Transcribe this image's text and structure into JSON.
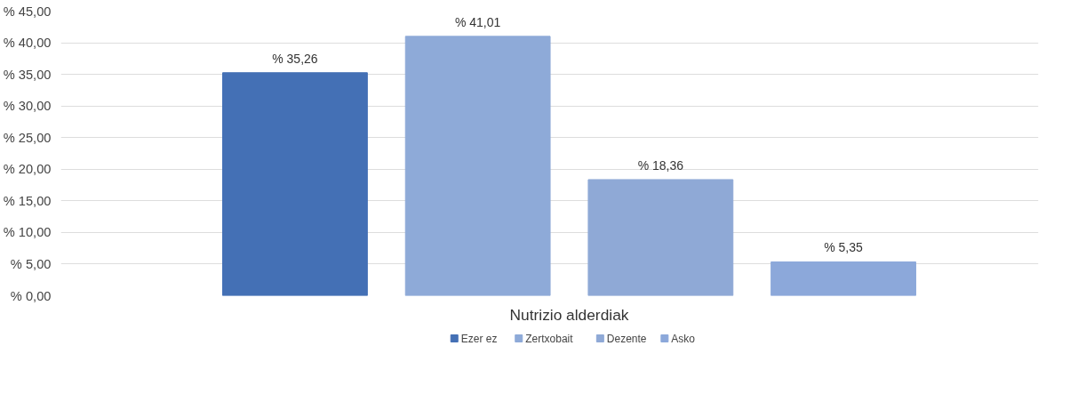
{
  "chart_data": {
    "type": "bar",
    "categories": [
      "Nutrizio alderdiak"
    ],
    "series": [
      {
        "name": "Ezer ez",
        "color": "#4470b5",
        "values": [
          35.26
        ],
        "value_labels": [
          "% 35,26"
        ]
      },
      {
        "name": "Zertxobait",
        "color": "#8eaad8",
        "values": [
          41.01
        ],
        "value_labels": [
          "% 41,01"
        ]
      },
      {
        "name": "Dezente",
        "color": "#8fa9d6",
        "values": [
          18.36
        ],
        "value_labels": [
          "% 18,36"
        ]
      },
      {
        "name": "Asko",
        "color": "#8ca8da",
        "values": [
          5.35
        ],
        "value_labels": [
          "% 5,35"
        ]
      }
    ],
    "ylim": [
      0,
      45
    ],
    "yticks": [
      {
        "value": 0,
        "label": "% 0,00"
      },
      {
        "value": 5,
        "label": "% 5,00"
      },
      {
        "value": 10,
        "label": "% 10,00"
      },
      {
        "value": 15,
        "label": "% 15,00"
      },
      {
        "value": 20,
        "label": "% 20,00"
      },
      {
        "value": 25,
        "label": "% 25,00"
      },
      {
        "value": 30,
        "label": "% 30,00"
      },
      {
        "value": 35,
        "label": "% 35,00"
      },
      {
        "value": 40,
        "label": "% 40,00"
      },
      {
        "value": 45,
        "label": "% 45,00"
      }
    ],
    "grid": "y",
    "legend": "bottom"
  }
}
